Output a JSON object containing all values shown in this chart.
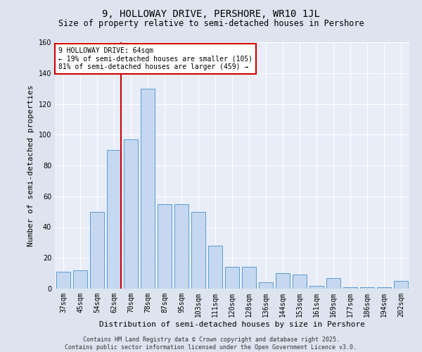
{
  "title": "9, HOLLOWAY DRIVE, PERSHORE, WR10 1JL",
  "subtitle": "Size of property relative to semi-detached houses in Pershore",
  "xlabel": "Distribution of semi-detached houses by size in Pershore",
  "ylabel": "Number of semi-detached properties",
  "categories": [
    "37sqm",
    "45sqm",
    "54sqm",
    "62sqm",
    "70sqm",
    "78sqm",
    "87sqm",
    "95sqm",
    "103sqm",
    "111sqm",
    "120sqm",
    "128sqm",
    "136sqm",
    "144sqm",
    "153sqm",
    "161sqm",
    "169sqm",
    "177sqm",
    "186sqm",
    "194sqm",
    "202sqm"
  ],
  "values": [
    11,
    12,
    50,
    90,
    97,
    130,
    55,
    55,
    50,
    28,
    14,
    14,
    4,
    10,
    9,
    2,
    7,
    1,
    1,
    1,
    5
  ],
  "bar_color": "#c5d8f0",
  "bar_edge_color": "#5b9bd5",
  "subject_line_color": "#cc0000",
  "annotation_text": "9 HOLLOWAY DRIVE: 64sqm\n← 19% of semi-detached houses are smaller (105)\n81% of semi-detached houses are larger (459) →",
  "annotation_box_color": "#ffffff",
  "annotation_border_color": "#cc0000",
  "ylim": [
    0,
    160
  ],
  "yticks": [
    0,
    20,
    40,
    60,
    80,
    100,
    120,
    140,
    160
  ],
  "background_color": "#dde4f0",
  "plot_background_color": "#e8edf8",
  "grid_color": "#ffffff",
  "footer_text": "Contains HM Land Registry data © Crown copyright and database right 2025.\nContains public sector information licensed under the Open Government Licence v3.0.",
  "title_fontsize": 10,
  "subtitle_fontsize": 8.5,
  "ylabel_fontsize": 8,
  "xlabel_fontsize": 8,
  "tick_fontsize": 7,
  "annotation_fontsize": 7,
  "footer_fontsize": 6
}
